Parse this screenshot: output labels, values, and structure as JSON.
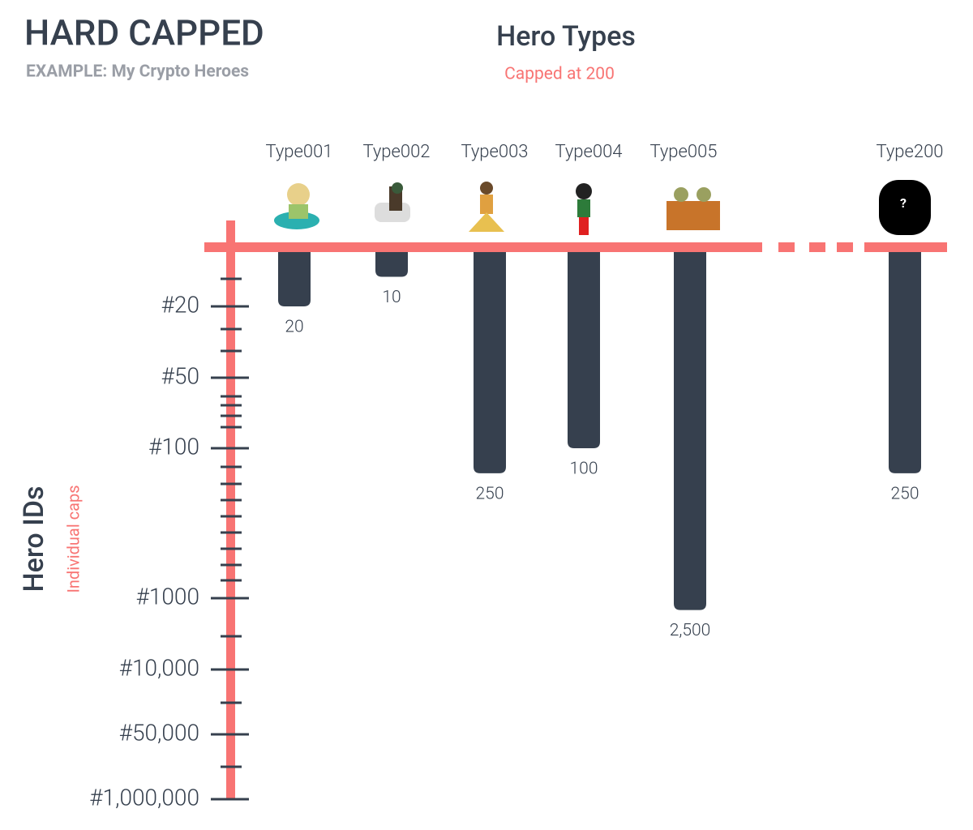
{
  "header": {
    "title": "HARD CAPPED",
    "subtitle": "EXAMPLE: My Crypto Heroes"
  },
  "chart_data": {
    "type": "bar",
    "title": "Hero Types",
    "subtitle": "Capped at 200",
    "y_label": "Hero IDs",
    "y_sublabel": "Individual caps",
    "categories": [
      "Type001",
      "Type002",
      "Type003",
      "Type004",
      "Type005",
      "Type200"
    ],
    "values": [
      20,
      10,
      250,
      100,
      2500,
      250
    ],
    "value_labels": [
      "20",
      "10",
      "250",
      "100",
      "2,500",
      "250"
    ],
    "placeholder_label": "?",
    "color": "#36404e",
    "axis_color": "#f87473",
    "ylim": [
      0,
      1000000
    ],
    "yticks": [
      {
        "value": 20,
        "label": "#20"
      },
      {
        "value": 50,
        "label": "#50"
      },
      {
        "value": 100,
        "label": "#100"
      },
      {
        "value": 1000,
        "label": "#1000"
      },
      {
        "value": 10000,
        "label": "#10,000"
      },
      {
        "value": 50000,
        "label": "#50,000"
      },
      {
        "value": 1000000,
        "label": "#1,000,000"
      }
    ]
  }
}
